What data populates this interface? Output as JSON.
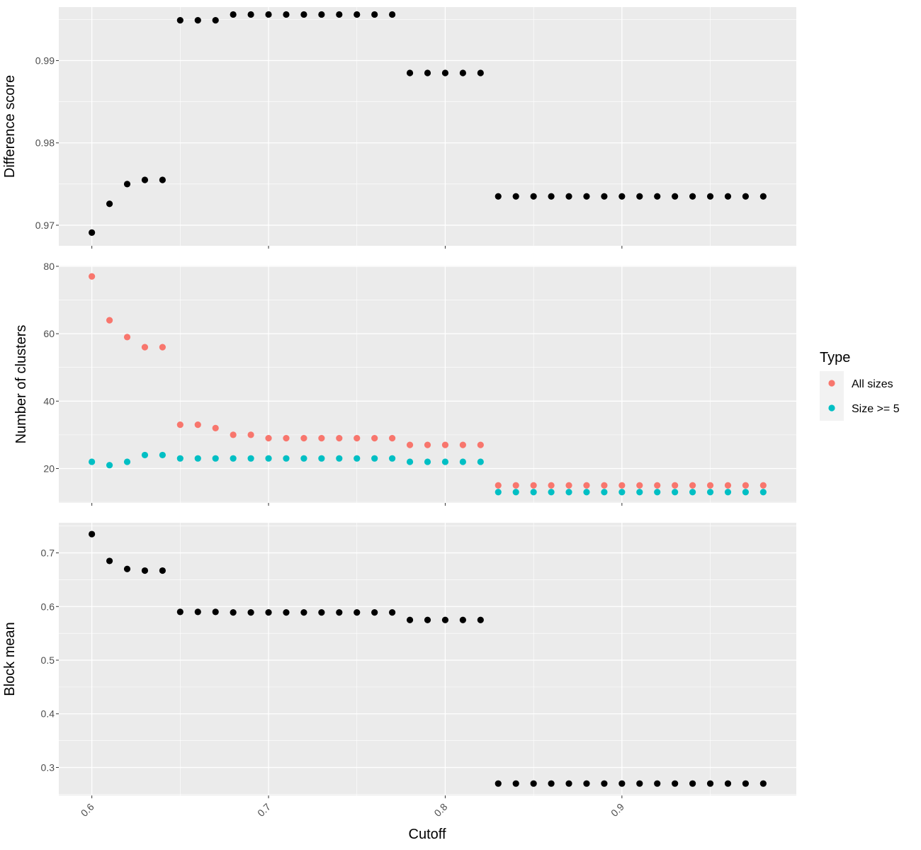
{
  "chart_data": [
    {
      "type": "scatter",
      "ylabel": "Difference score",
      "ylim": [
        0.9675,
        0.9965
      ],
      "yticks": [
        "0.97",
        "0.98",
        "0.99"
      ],
      "x": [
        0.6,
        0.61,
        0.62,
        0.63,
        0.64,
        0.65,
        0.66,
        0.67,
        0.68,
        0.69,
        0.7,
        0.71,
        0.72,
        0.73,
        0.74,
        0.75,
        0.76,
        0.77,
        0.78,
        0.79,
        0.8,
        0.81,
        0.82,
        0.83,
        0.84,
        0.85,
        0.86,
        0.87,
        0.88,
        0.89,
        0.9,
        0.91,
        0.92,
        0.93,
        0.94,
        0.95,
        0.96,
        0.97,
        0.98
      ],
      "series": [
        {
          "color": "#000000",
          "values": [
            0.9691,
            0.9726,
            0.975,
            0.9755,
            0.9755,
            0.9949,
            0.9949,
            0.9949,
            0.9956,
            0.9956,
            0.9956,
            0.9956,
            0.9956,
            0.9956,
            0.9956,
            0.9956,
            0.9956,
            0.9956,
            0.9885,
            0.9885,
            0.9885,
            0.9885,
            0.9885,
            0.9735,
            0.9735,
            0.9735,
            0.9735,
            0.9735,
            0.9735,
            0.9735,
            0.9735,
            0.9735,
            0.9735,
            0.9735,
            0.9735,
            0.9735,
            0.9735,
            0.9735,
            0.9735
          ]
        }
      ]
    },
    {
      "type": "scatter",
      "ylabel": "Number of clusters",
      "ylim": [
        9.8,
        80.2
      ],
      "yticks": [
        "20",
        "40",
        "60",
        "80"
      ],
      "x": [
        0.6,
        0.61,
        0.62,
        0.63,
        0.64,
        0.65,
        0.66,
        0.67,
        0.68,
        0.69,
        0.7,
        0.71,
        0.72,
        0.73,
        0.74,
        0.75,
        0.76,
        0.77,
        0.78,
        0.79,
        0.8,
        0.81,
        0.82,
        0.83,
        0.84,
        0.85,
        0.86,
        0.87,
        0.88,
        0.89,
        0.9,
        0.91,
        0.92,
        0.93,
        0.94,
        0.95,
        0.96,
        0.97,
        0.98
      ],
      "series": [
        {
          "name": "All sizes",
          "color": "#F8766D",
          "values": [
            77,
            64,
            59,
            56,
            56,
            33,
            33,
            32,
            30,
            30,
            29,
            29,
            29,
            29,
            29,
            29,
            29,
            29,
            27,
            27,
            27,
            27,
            27,
            15,
            15,
            15,
            15,
            15,
            15,
            15,
            15,
            15,
            15,
            15,
            15,
            15,
            15,
            15,
            15
          ]
        },
        {
          "name": "Size >= 5",
          "color": "#00BFC4",
          "values": [
            22,
            21,
            22,
            24,
            24,
            23,
            23,
            23,
            23,
            23,
            23,
            23,
            23,
            23,
            23,
            23,
            23,
            23,
            22,
            22,
            22,
            22,
            22,
            13,
            13,
            13,
            13,
            13,
            13,
            13,
            13,
            13,
            13,
            13,
            13,
            13,
            13,
            13,
            13
          ]
        }
      ]
    },
    {
      "type": "scatter",
      "ylabel": "Block mean",
      "ylim": [
        0.2478,
        0.7562
      ],
      "yticks": [
        "0.3",
        "0.4",
        "0.5",
        "0.6",
        "0.7"
      ],
      "x": [
        0.6,
        0.61,
        0.62,
        0.63,
        0.64,
        0.65,
        0.66,
        0.67,
        0.68,
        0.69,
        0.7,
        0.71,
        0.72,
        0.73,
        0.74,
        0.75,
        0.76,
        0.77,
        0.78,
        0.79,
        0.8,
        0.81,
        0.82,
        0.83,
        0.84,
        0.85,
        0.86,
        0.87,
        0.88,
        0.89,
        0.9,
        0.91,
        0.92,
        0.93,
        0.94,
        0.95,
        0.96,
        0.97,
        0.98
      ],
      "series": [
        {
          "color": "#000000",
          "values": [
            0.735,
            0.685,
            0.67,
            0.667,
            0.667,
            0.59,
            0.59,
            0.59,
            0.589,
            0.589,
            0.589,
            0.589,
            0.589,
            0.589,
            0.589,
            0.589,
            0.589,
            0.589,
            0.575,
            0.575,
            0.575,
            0.575,
            0.575,
            0.27,
            0.27,
            0.27,
            0.27,
            0.27,
            0.27,
            0.27,
            0.27,
            0.27,
            0.27,
            0.27,
            0.27,
            0.27,
            0.27,
            0.27,
            0.27
          ]
        }
      ]
    }
  ],
  "x_axis": {
    "title": "Cutoff",
    "xlim": [
      0.5813,
      0.9987
    ],
    "ticks": [
      "0.6",
      "0.7",
      "0.8",
      "0.9"
    ],
    "tick_angle": -45
  },
  "legend": {
    "title": "Type",
    "position": "right",
    "entries": [
      {
        "label": "All sizes",
        "color": "#F8766D"
      },
      {
        "label": "Size >= 5",
        "color": "#00BFC4"
      }
    ]
  },
  "style": {
    "panel_background": "#EBEBEB",
    "grid_color": "#FFFFFF",
    "grid": true
  }
}
